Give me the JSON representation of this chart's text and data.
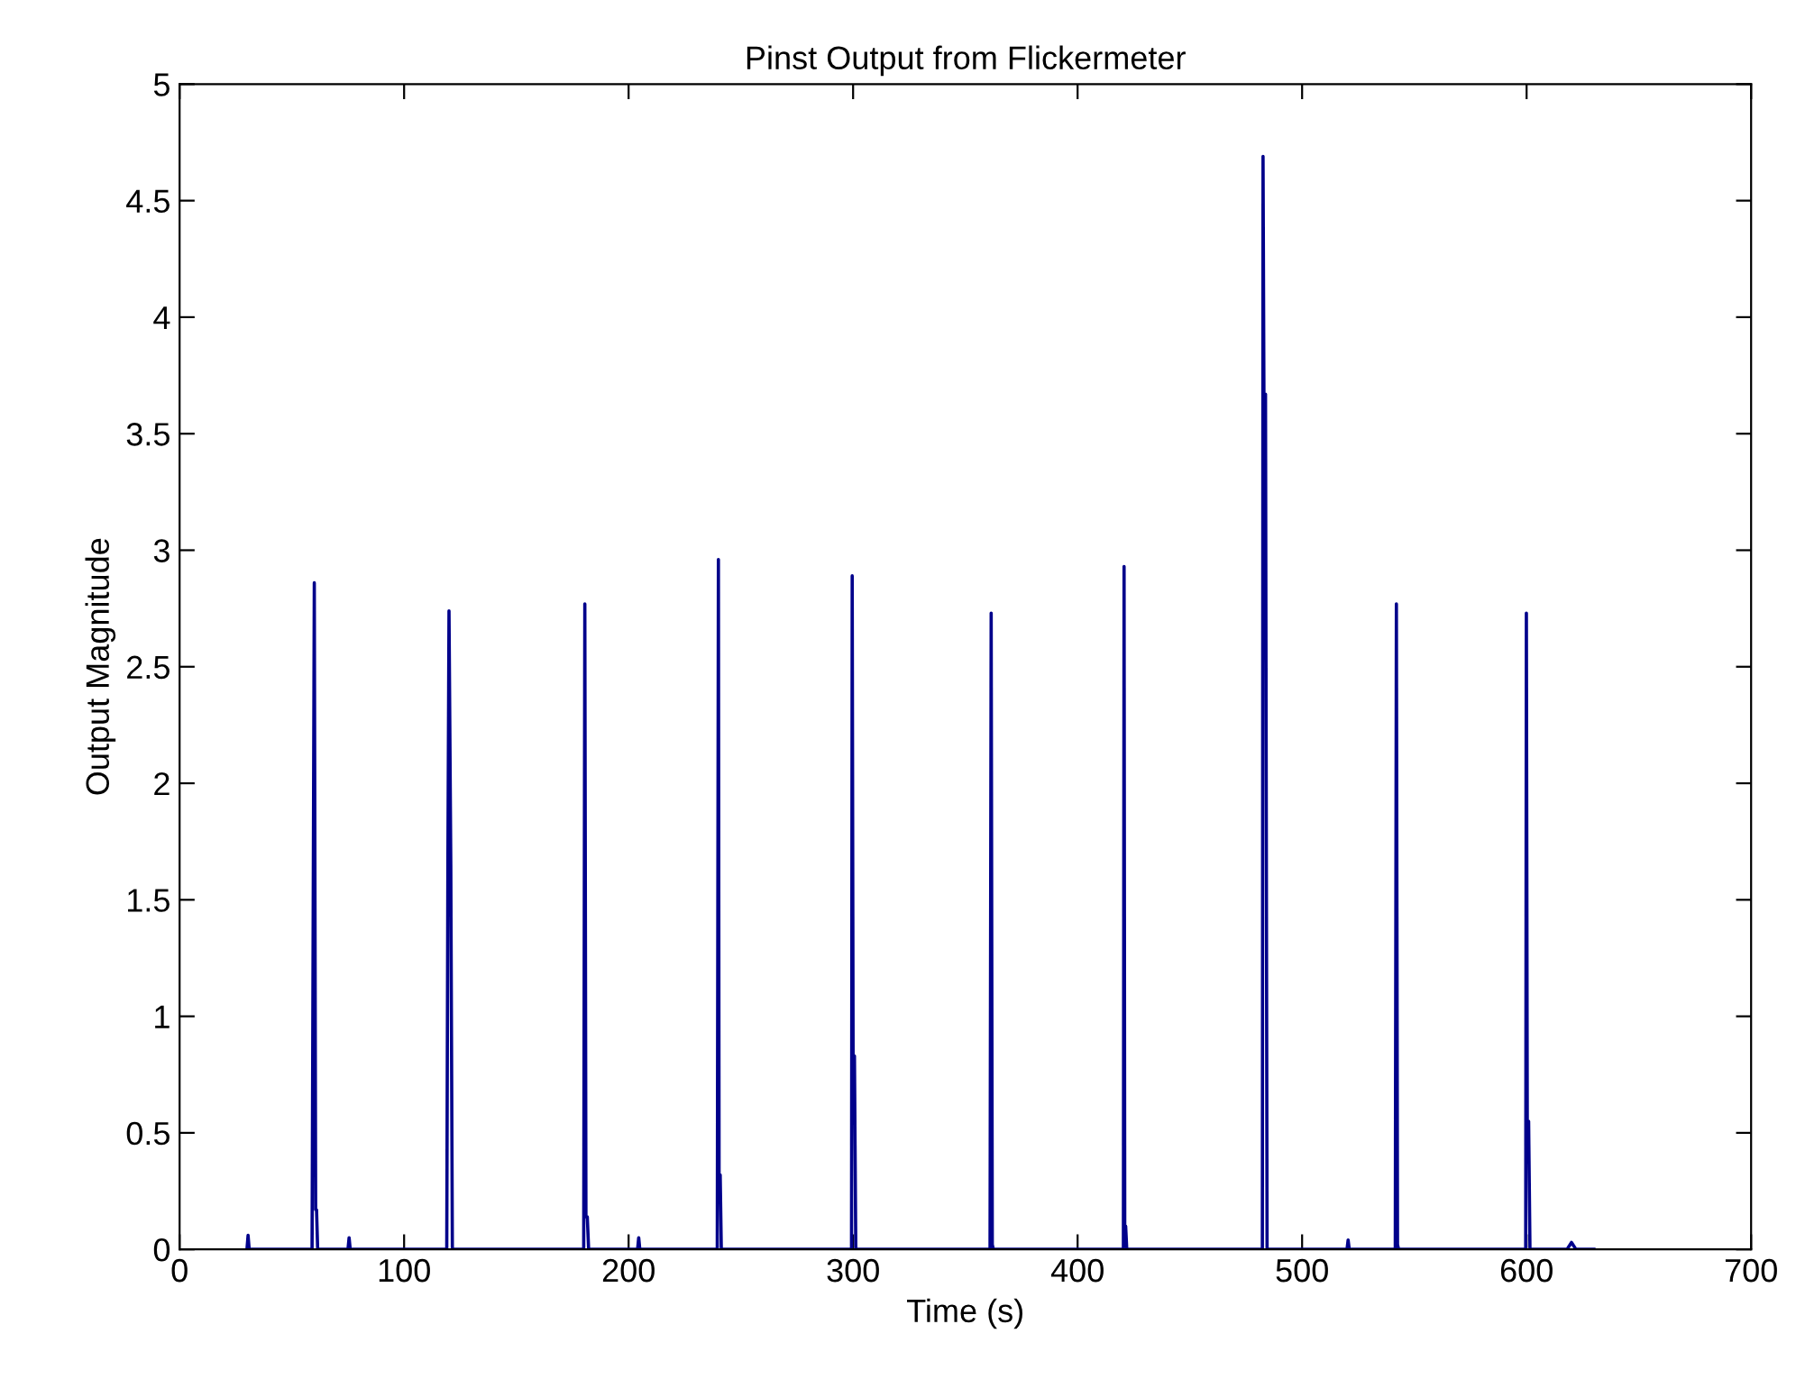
{
  "chart_data": {
    "type": "line",
    "title": "Pinst Output from Flickermeter",
    "xlabel": "Time (s)",
    "ylabel": "Output Magnitude",
    "xlim": [
      0,
      700
    ],
    "xticks": [
      0,
      100,
      200,
      300,
      400,
      500,
      600,
      700
    ],
    "ylim": [
      0,
      5
    ],
    "yticks": [
      0,
      0.5,
      1,
      1.5,
      2,
      2.5,
      3,
      3.5,
      4,
      4.5,
      5
    ],
    "grid": false,
    "marker": "none",
    "line_style": "solid",
    "series": [
      {
        "color": "#00008b",
        "x": [
          30,
          30.5,
          31,
          40,
          59,
          59.5,
          60,
          60.6,
          61,
          61.5,
          75,
          75.5,
          76,
          119,
          119.5,
          120,
          120.8,
          121.5,
          180,
          180.5,
          181,
          181.6,
          182.2,
          204,
          204.5,
          205,
          239.5,
          240,
          240.3,
          240.8,
          241.3,
          299.3,
          299.6,
          300,
          300.6,
          301.2,
          361,
          361.5,
          362,
          362.5,
          420.4,
          420.7,
          421,
          421.4,
          421.9,
          482.3,
          482.6,
          483,
          483.7,
          484.4,
          520,
          520.5,
          521,
          541.5,
          542,
          542.5,
          543,
          599.6,
          599.9,
          600.3,
          600.9,
          601.5,
          618,
          620,
          622,
          630
        ],
        "values": [
          0,
          0.06,
          0,
          0,
          0,
          1.43,
          2.86,
          0.17,
          0.17,
          0,
          0,
          0.05,
          0,
          0,
          1.65,
          2.74,
          1.65,
          0,
          0,
          2.77,
          0.14,
          0.14,
          0,
          0,
          0.05,
          0,
          0,
          2.96,
          0.32,
          0.32,
          0,
          0,
          2.89,
          0.83,
          0.83,
          0,
          0,
          2.73,
          0.02,
          0,
          0,
          2.93,
          0.1,
          0.1,
          0,
          0,
          4.69,
          3.67,
          3.67,
          0,
          0,
          0.04,
          0,
          0,
          2.77,
          0.02,
          0,
          0,
          2.73,
          0.55,
          0.55,
          0,
          0,
          0.03,
          0,
          0
        ]
      }
    ]
  }
}
